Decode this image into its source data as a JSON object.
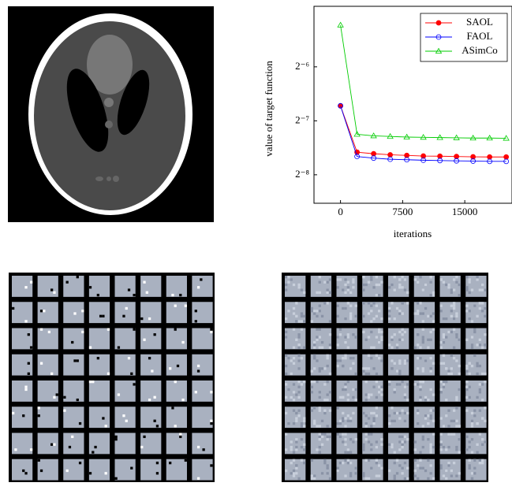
{
  "chart_data": {
    "type": "line",
    "x_label": "iterations",
    "y_label": "value of target function",
    "x": [
      0,
      2000,
      4000,
      6000,
      8000,
      10000,
      12000,
      14000,
      16000,
      18000,
      20000
    ],
    "series": [
      {
        "name": "SAOL",
        "color": "#ff0000",
        "marker": "filled-circle",
        "values": [
          0.00947,
          0.00522,
          0.00512,
          0.00505,
          0.00501,
          0.00497,
          0.00496,
          0.00494,
          0.00492,
          0.00491,
          0.00491
        ]
      },
      {
        "name": "FAOL",
        "color": "#0000ff",
        "marker": "open-circle",
        "values": [
          0.00947,
          0.00494,
          0.00484,
          0.00477,
          0.00474,
          0.00471,
          0.00469,
          0.00467,
          0.00466,
          0.00464,
          0.00464
        ]
      },
      {
        "name": "ASimCo",
        "color": "#00cc00",
        "marker": "open-triangle",
        "values": [
          0.0267,
          0.00657,
          0.00644,
          0.00639,
          0.00634,
          0.00632,
          0.0063,
          0.00628,
          0.00626,
          0.00626,
          0.00624
        ]
      }
    ],
    "xlim": [
      -3200,
      20700
    ],
    "xticks": [
      0,
      7500,
      15000
    ],
    "ylim": [
      0.00271,
      0.034
    ],
    "y_scale": "log2",
    "yticks": [
      {
        "value": 0.015625,
        "label": "2⁻⁶"
      },
      {
        "value": 0.0078125,
        "label": "2⁻⁷"
      },
      {
        "value": 0.00390625,
        "label": "2⁻⁸"
      }
    ],
    "legend": "upper right"
  }
}
